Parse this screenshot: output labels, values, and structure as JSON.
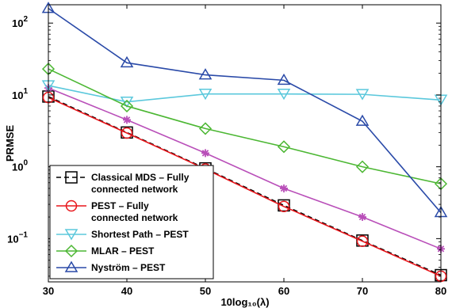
{
  "chart_data": {
    "type": "line",
    "title": "",
    "xlabel": "10log₁₀(λ)",
    "ylabel": "PRMSE",
    "x": [
      30,
      40,
      50,
      60,
      70,
      80
    ],
    "xlim": [
      30,
      80
    ],
    "ylim": [
      0.025,
      180
    ],
    "yscale": "log",
    "x_ticks": [
      "30",
      "40",
      "50",
      "60",
      "70",
      "80"
    ],
    "y_ticks": [
      {
        "value": 100,
        "base": "10",
        "exp": "2"
      },
      {
        "value": 10,
        "base": "10",
        "exp": "1"
      },
      {
        "value": 1,
        "base": "10",
        "exp": "0"
      },
      {
        "value": 0.1,
        "base": "10",
        "exp": "−1"
      }
    ],
    "grid": false,
    "legend_position": "bottom-left",
    "series": [
      {
        "name": "Classical MDS – Fully connected network",
        "legend_lines": [
          "Classical MDS – Fully",
          "connected network"
        ],
        "color": "#000000",
        "dash": "6,4",
        "marker": "square",
        "values": [
          9.5,
          3.0,
          0.95,
          0.29,
          0.094,
          0.031
        ]
      },
      {
        "name": "PEST – Fully connected network",
        "legend_lines": [
          "PEST – Fully",
          "connected network"
        ],
        "color": "#e8161b",
        "dash": "",
        "marker": "circle",
        "values": [
          9.2,
          2.95,
          0.93,
          0.28,
          0.092,
          0.03
        ]
      },
      {
        "name": "",
        "legend_lines": [],
        "color": "#b94fb9",
        "dash": "",
        "marker": "asterisk",
        "values": [
          12.5,
          4.5,
          1.55,
          0.5,
          0.2,
          0.072
        ]
      },
      {
        "name": "Shortest Path – PEST",
        "legend_lines": [
          "Shortest Path – PEST"
        ],
        "color": "#5bc8dc",
        "dash": "",
        "marker": "triangle-down",
        "values": [
          13.5,
          8.0,
          10.3,
          10.3,
          10.2,
          8.5
        ]
      },
      {
        "name": "MLAR – PEST",
        "legend_lines": [
          "MLAR – PEST"
        ],
        "color": "#4cb733",
        "dash": "",
        "marker": "diamond",
        "values": [
          23.0,
          7.0,
          3.4,
          1.9,
          1.0,
          0.58
        ]
      },
      {
        "name": "Nyström – PEST",
        "legend_lines": [
          "Nyström – PEST"
        ],
        "color": "#2a4aa8",
        "dash": "",
        "marker": "triangle-up",
        "values": [
          160,
          28,
          19,
          16,
          4.3,
          0.23
        ]
      }
    ]
  }
}
